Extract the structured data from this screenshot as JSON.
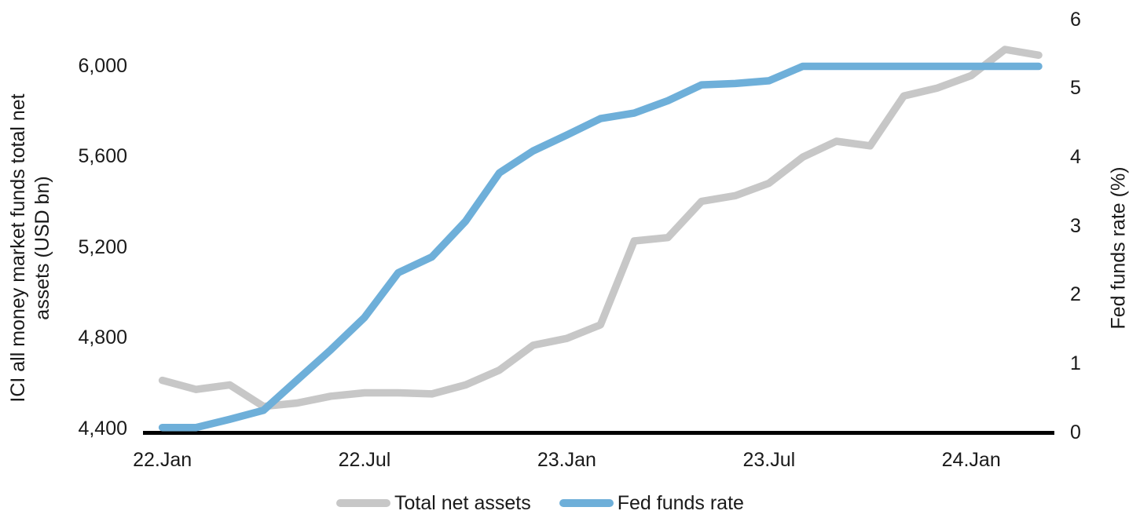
{
  "chart_data": {
    "type": "line",
    "title": "",
    "months": [
      "22.Jan",
      "22.Feb",
      "22.Mar",
      "22.Apr",
      "22.May",
      "22.Jun",
      "22.Jul",
      "22.Aug",
      "22.Sep",
      "22.Oct",
      "22.Nov",
      "22.Dec",
      "23.Jan",
      "23.Feb",
      "23.Mar",
      "23.Apr",
      "23.May",
      "23.Jun",
      "23.Jul",
      "23.Aug",
      "23.Sep",
      "23.Oct",
      "23.Nov",
      "23.Dec",
      "24.Jan",
      "24.Feb",
      "24.Mar"
    ],
    "x_ticks": [
      {
        "label": "22.Jan",
        "month_index": 0
      },
      {
        "label": "22.Jul",
        "month_index": 6
      },
      {
        "label": "23.Jan",
        "month_index": 12
      },
      {
        "label": "23.Jul",
        "month_index": 18
      },
      {
        "label": "24.Jan",
        "month_index": 24
      }
    ],
    "series": [
      {
        "name": "Total net assets",
        "axis": "left",
        "color": "#c7c7c7",
        "values": [
          4615,
          4575,
          4595,
          4500,
          4515,
          4545,
          4560,
          4560,
          4555,
          4595,
          4660,
          4770,
          4800,
          4860,
          5230,
          5245,
          5405,
          5430,
          5485,
          5600,
          5670,
          5650,
          5870,
          5905,
          5960,
          6075,
          6050
        ]
      },
      {
        "name": "Fed funds rate",
        "axis": "right",
        "color": "#6eafd9",
        "values": [
          0.08,
          0.08,
          0.2,
          0.33,
          0.77,
          1.21,
          1.68,
          2.33,
          2.56,
          3.08,
          3.78,
          4.1,
          4.33,
          4.57,
          4.65,
          4.83,
          5.06,
          5.08,
          5.12,
          5.33,
          5.33,
          5.33,
          5.33,
          5.33,
          5.33,
          5.33,
          5.33
        ]
      }
    ],
    "left_axis": {
      "title": "ICI all money market funds total net assets (USD bn)",
      "title_lines": [
        "ICI all money market funds total net",
        "assets (USD bn)"
      ],
      "ticks": [
        4400,
        4800,
        5200,
        5600,
        6000
      ],
      "tick_labels": [
        "4,400",
        "4,800",
        "5,200",
        "5,600",
        "6,000"
      ],
      "range_shown": [
        4400,
        6000
      ]
    },
    "right_axis": {
      "title": "Fed funds rate (%)",
      "ticks": [
        0,
        1,
        2,
        3,
        4,
        5,
        6
      ],
      "tick_labels": [
        "0",
        "1",
        "2",
        "3",
        "4",
        "5",
        "6"
      ],
      "range_shown": [
        0,
        6
      ]
    },
    "legend": [
      {
        "label": "Total net assets",
        "color": "#c7c7c7"
      },
      {
        "label": "Fed funds rate",
        "color": "#6eafd9"
      }
    ],
    "axis_line_color": "#000000",
    "grid": false,
    "legend_position": "bottom"
  }
}
